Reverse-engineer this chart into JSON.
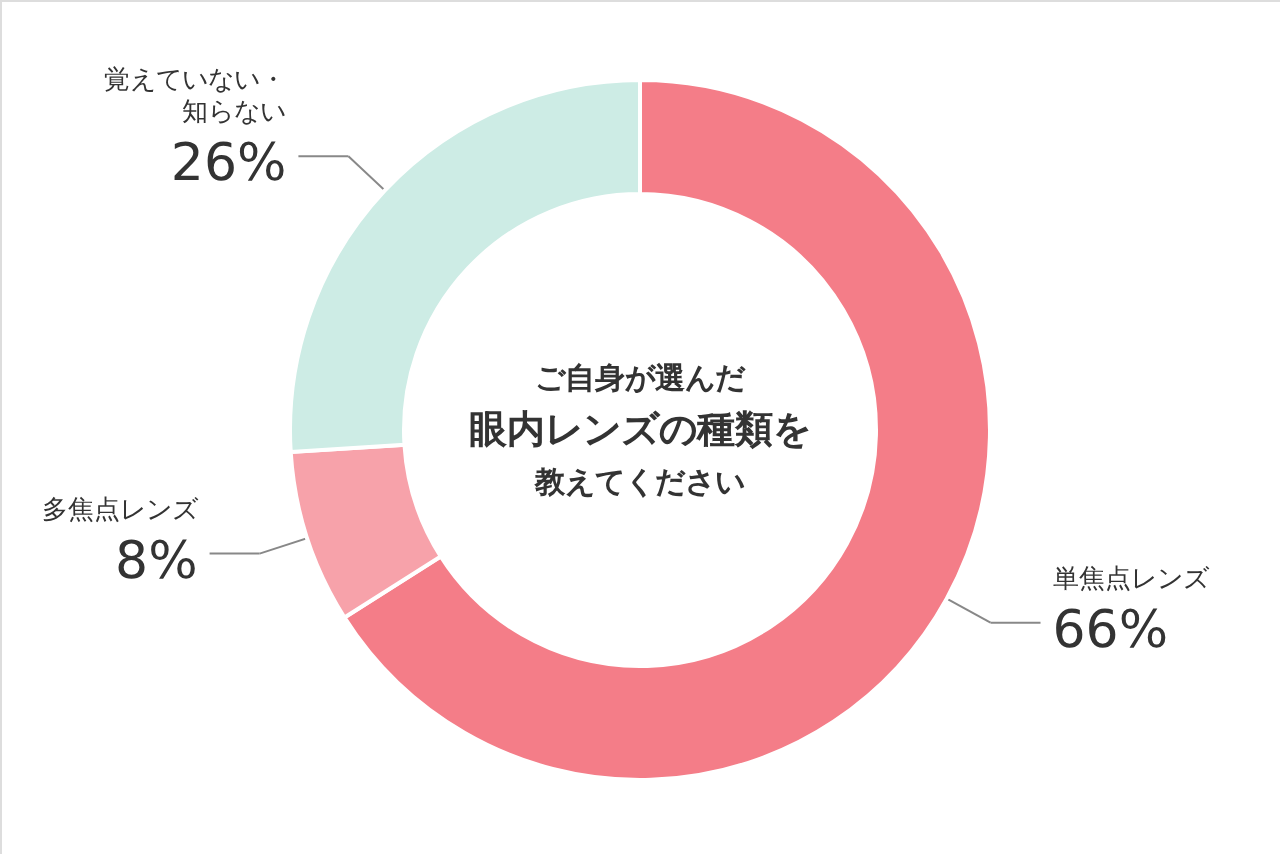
{
  "chart_data": {
    "type": "donut",
    "annotations": [
      "ご自身が選んだ",
      "眼内レンズの種類を",
      "教えてください"
    ],
    "categories": [
      "単焦点レンズ",
      "多焦点レンズ",
      "覚えていない・知らない"
    ],
    "values": [
      66,
      8,
      26
    ],
    "value_labels": [
      "66%",
      "8%",
      "26%"
    ],
    "colors": [
      "#f47d88",
      "#f7a2aa",
      "#cdece5"
    ]
  }
}
